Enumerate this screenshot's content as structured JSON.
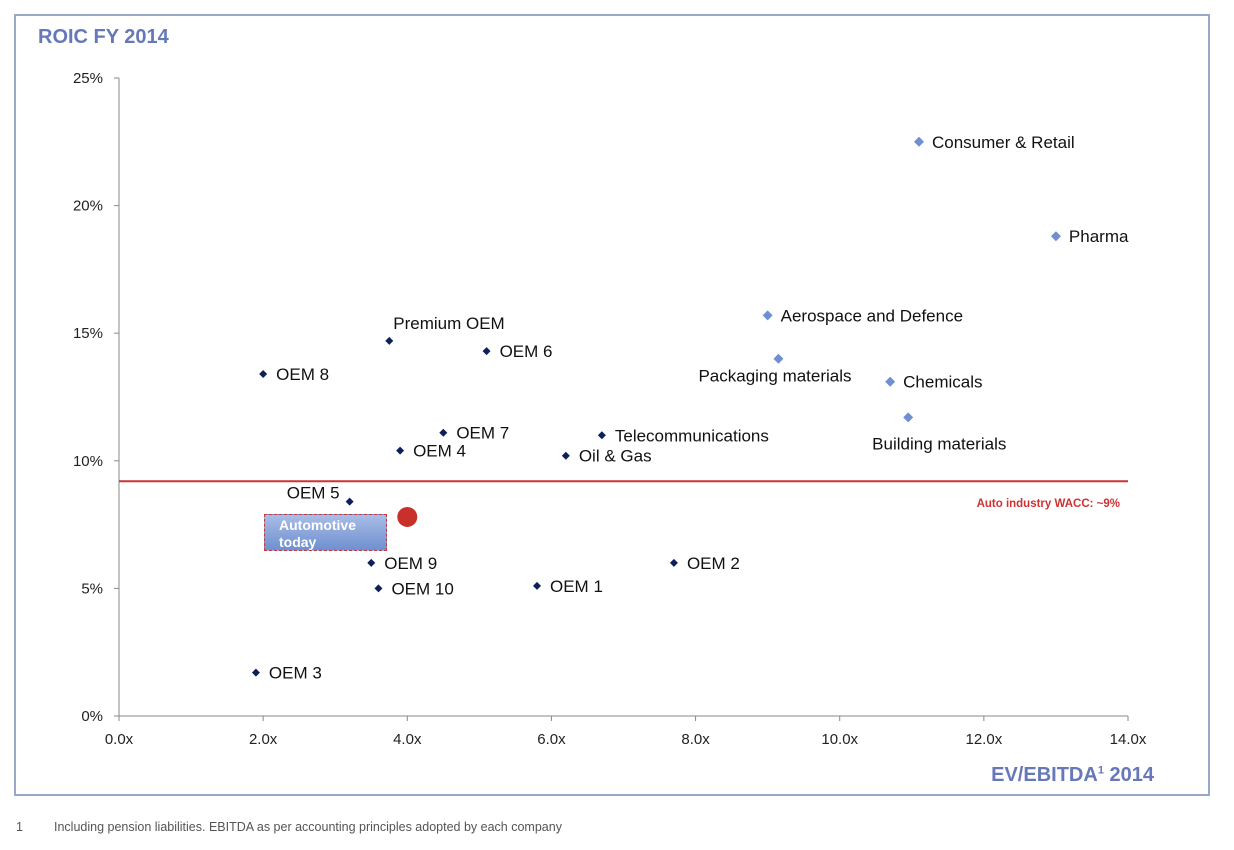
{
  "title": "ROIC FY 2014",
  "x_title": "EV/EBITDA",
  "x_title_sup": "1",
  "x_title_year": "2014",
  "footnote": {
    "number": "1",
    "text": "Including pension liabilities. EBITDA as per accounting principles adopted by each company"
  },
  "highlight_box": {
    "line1": "Automotive",
    "line2": "today"
  },
  "colors": {
    "title": "#6678b8",
    "oem_marker": "#0f1f5c",
    "sector_marker": "#6f8fd0",
    "wacc_line": "#cc3333",
    "automotive_dot": "#c9302c"
  },
  "chart_data": {
    "type": "scatter",
    "title": "ROIC FY 2014",
    "xlabel": "EV/EBITDA¹ 2014",
    "ylabel": "",
    "xlim": [
      0,
      14
    ],
    "ylim": [
      0,
      25
    ],
    "x_ticks": [
      {
        "value": 0,
        "label": "0.0x"
      },
      {
        "value": 2,
        "label": "2.0x"
      },
      {
        "value": 4,
        "label": "4.0x"
      },
      {
        "value": 6,
        "label": "6.0x"
      },
      {
        "value": 8,
        "label": "8.0x"
      },
      {
        "value": 10,
        "label": "10.0x"
      },
      {
        "value": 12,
        "label": "12.0x"
      },
      {
        "value": 14,
        "label": "14.0x"
      }
    ],
    "y_ticks": [
      {
        "value": 0,
        "label": "0%"
      },
      {
        "value": 5,
        "label": "5%"
      },
      {
        "value": 10,
        "label": "10%"
      },
      {
        "value": 15,
        "label": "15%"
      },
      {
        "value": 20,
        "label": "20%"
      },
      {
        "value": 25,
        "label": "25%"
      }
    ],
    "grid": false,
    "series": [
      {
        "kind": "oem",
        "points": [
          {
            "label": "OEM 1",
            "x": 5.8,
            "y": 5.1,
            "label_pos": "right"
          },
          {
            "label": "OEM 2",
            "x": 7.7,
            "y": 6.0,
            "label_pos": "right"
          },
          {
            "label": "OEM 3",
            "x": 1.9,
            "y": 1.7,
            "label_pos": "right"
          },
          {
            "label": "OEM 4",
            "x": 3.9,
            "y": 10.4,
            "label_pos": "right"
          },
          {
            "label": "OEM 5",
            "x": 3.2,
            "y": 8.4,
            "label_pos": "above-left"
          },
          {
            "label": "OEM 6",
            "x": 5.1,
            "y": 14.3,
            "label_pos": "right"
          },
          {
            "label": "OEM 7",
            "x": 4.5,
            "y": 11.1,
            "label_pos": "right"
          },
          {
            "label": "OEM 8",
            "x": 2.0,
            "y": 13.4,
            "label_pos": "right"
          },
          {
            "label": "OEM 9",
            "x": 3.5,
            "y": 6.0,
            "label_pos": "right"
          },
          {
            "label": "OEM 10",
            "x": 3.6,
            "y": 5.0,
            "label_pos": "right"
          },
          {
            "label": "Premium OEM",
            "x": 3.75,
            "y": 14.7,
            "label_pos": "above"
          },
          {
            "label": "Oil & Gas",
            "x": 6.2,
            "y": 10.2,
            "label_pos": "right"
          },
          {
            "label": "Telecommunications",
            "x": 6.7,
            "y": 11.0,
            "label_pos": "right"
          }
        ]
      },
      {
        "kind": "sector",
        "points": [
          {
            "label": "Consumer & Retail",
            "x": 11.1,
            "y": 22.5,
            "label_pos": "right"
          },
          {
            "label": "Pharma",
            "x": 13.0,
            "y": 18.8,
            "label_pos": "right"
          },
          {
            "label": "Aerospace and Defence",
            "x": 9.0,
            "y": 15.7,
            "label_pos": "right"
          },
          {
            "label": "Packaging materials",
            "x": 9.15,
            "y": 14.0,
            "label_pos": "below-left"
          },
          {
            "label": "Chemicals",
            "x": 10.7,
            "y": 13.1,
            "label_pos": "right"
          },
          {
            "label": "Building materials",
            "x": 10.95,
            "y": 11.7,
            "label_pos": "below"
          }
        ]
      }
    ],
    "automotive_today": {
      "x": 4.0,
      "y": 7.8
    },
    "reference_line": {
      "y": 9.2,
      "label": "Auto industry WACC: ~9%"
    }
  }
}
